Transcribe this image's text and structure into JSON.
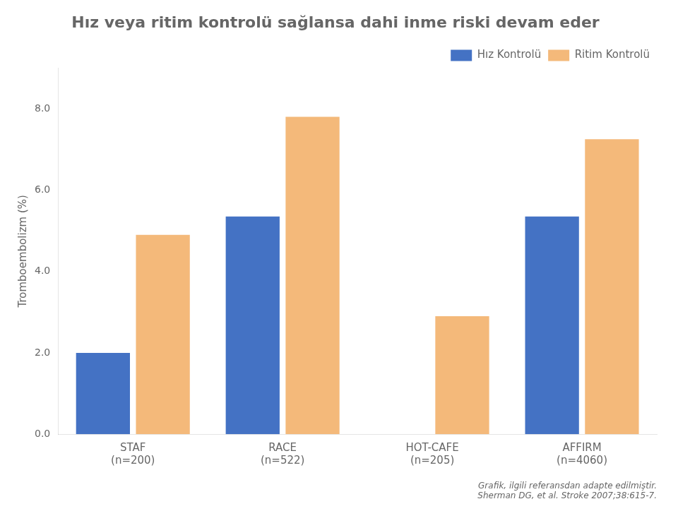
{
  "chart_data": {
    "type": "bar",
    "title": "Hız veya ritim kontrolü sağlansa dahi inme riski devam eder",
    "y_label": "Tromboembolizm (%)",
    "categories": [
      [
        "STAF",
        "(n=200)"
      ],
      [
        "RACE",
        "(n=522)"
      ],
      [
        "HOT-CAFE",
        "(n=205)"
      ],
      [
        "AFFIRM",
        "(n=4060)"
      ]
    ],
    "series": [
      {
        "name": "Hız Kontrolü",
        "color": "#4472C4",
        "values": [
          2.0,
          5.35,
          0.0,
          5.35
        ]
      },
      {
        "name": "Ritim Kontrolü",
        "color": "#F4B97A",
        "values": [
          4.9,
          7.8,
          2.9,
          7.25
        ]
      }
    ],
    "ylim": [
      0,
      9.0
    ],
    "yticks": [
      {
        "value": 0.0,
        "label": "0.0"
      },
      {
        "value": 2.0,
        "label": "2.0"
      },
      {
        "value": 4.0,
        "label": "4.0"
      },
      {
        "value": 6.0,
        "label": "6.0"
      },
      {
        "value": 8.0,
        "label": "8.0"
      }
    ],
    "grid": false,
    "legend": "upper right",
    "footnotes": [
      "Grafik, ilgili referansdan adapte edilmiştir.",
      "Sherman DG, et al. Stroke 2007;38:615-7."
    ]
  }
}
